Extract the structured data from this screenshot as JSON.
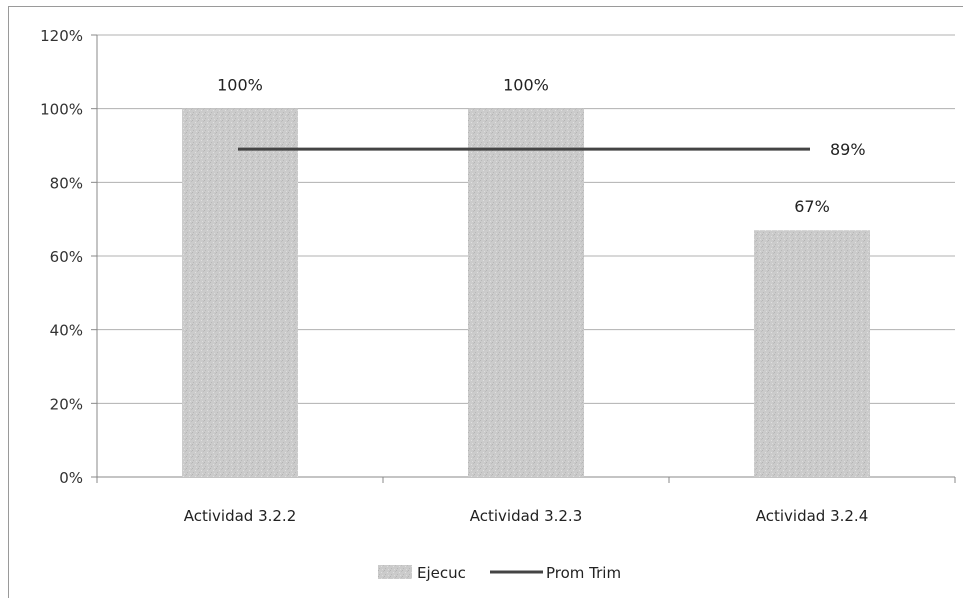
{
  "chart_data": {
    "type": "bar",
    "categories": [
      "Actividad 3.2.2",
      "Actividad 3.2.3",
      "Actividad 3.2.4"
    ],
    "series": [
      {
        "name": "Ejecuc",
        "type": "bar",
        "values": [
          100,
          100,
          67
        ]
      },
      {
        "name": "Prom Trim",
        "type": "line",
        "values": [
          89,
          89,
          89
        ]
      }
    ],
    "data_labels": {
      "bars": [
        "100%",
        "100%",
        "67%"
      ],
      "line": "89%"
    },
    "ylim": [
      0,
      120
    ],
    "yticks": [
      "0%",
      "20%",
      "40%",
      "60%",
      "80%",
      "100%",
      "120%"
    ],
    "grid": true,
    "legend_position": "bottom",
    "colors": {
      "bar": "#c8c8c8",
      "line": "#444444",
      "grid": "#b0b0b0"
    }
  }
}
